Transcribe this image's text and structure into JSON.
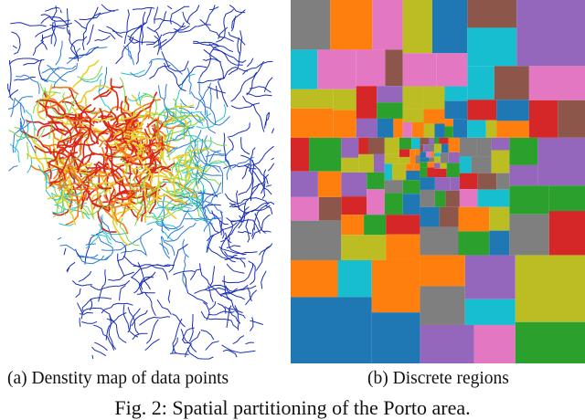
{
  "subfigures": [
    {
      "label": "(a)",
      "caption": "Denstity map of data points"
    },
    {
      "label": "(b)",
      "caption": "Discrete regions"
    }
  ],
  "figure_caption": "Fig. 2: Spatial partitioning of the Porto area.",
  "density_colors": [
    "#1a2fb8",
    "#2f7bd6",
    "#27c3c9",
    "#7ad64a",
    "#e6d12a",
    "#f07c1c",
    "#d9261b"
  ],
  "region_palette": [
    "#7f7f7f",
    "#e377c2",
    "#2ca02c",
    "#9467bd",
    "#1f77b4",
    "#17becf",
    "#ff7f0e",
    "#d62728",
    "#bcbd22",
    "#8c564b"
  ]
}
